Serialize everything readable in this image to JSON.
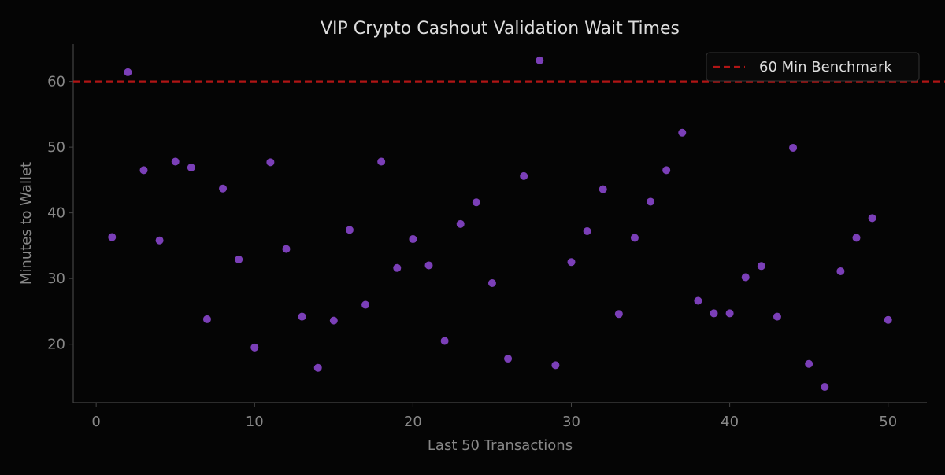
{
  "chart_data": {
    "type": "scatter",
    "title": "VIP Crypto Cashout Validation Wait Times",
    "xlabel": "Last 50 Transactions",
    "ylabel": "Minutes to Wallet",
    "xlim": [
      -1.45,
      52.45
    ],
    "ylim": [
      11.1,
      65.7
    ],
    "xticks": [
      0,
      10,
      20,
      30,
      40,
      50
    ],
    "yticks": [
      20,
      30,
      40,
      50,
      60
    ],
    "grid": false,
    "legend_position": "top-right",
    "colors": {
      "background": "#050505",
      "points": "#7b3fb8",
      "benchmark": "#b01515",
      "text": "#dddddd",
      "axis_text": "#888888",
      "spine": "#444444"
    },
    "benchmark": {
      "name": "60 Min Benchmark",
      "value": 60,
      "style": "dashed"
    },
    "x": [
      1,
      2,
      3,
      4,
      5,
      6,
      7,
      8,
      9,
      10,
      11,
      12,
      13,
      14,
      15,
      16,
      17,
      18,
      19,
      20,
      21,
      22,
      23,
      24,
      25,
      26,
      27,
      28,
      29,
      30,
      31,
      32,
      33,
      34,
      35,
      36,
      37,
      38,
      39,
      40,
      41,
      42,
      43,
      44,
      45,
      46,
      47,
      48,
      49,
      50
    ],
    "y": [
      36.3,
      61.4,
      46.5,
      35.8,
      47.8,
      46.9,
      23.8,
      43.7,
      32.9,
      19.5,
      47.7,
      34.5,
      24.2,
      16.4,
      23.6,
      37.4,
      26.0,
      47.8,
      31.6,
      36.0,
      32.0,
      20.5,
      38.3,
      41.6,
      29.3,
      17.8,
      45.6,
      63.2,
      16.8,
      32.5,
      37.2,
      43.6,
      24.6,
      36.2,
      41.7,
      46.5,
      52.2,
      26.6,
      24.7,
      24.7,
      30.2,
      31.9,
      24.2,
      49.9,
      17.0,
      13.5,
      31.1,
      36.2,
      39.2,
      23.7
    ]
  }
}
